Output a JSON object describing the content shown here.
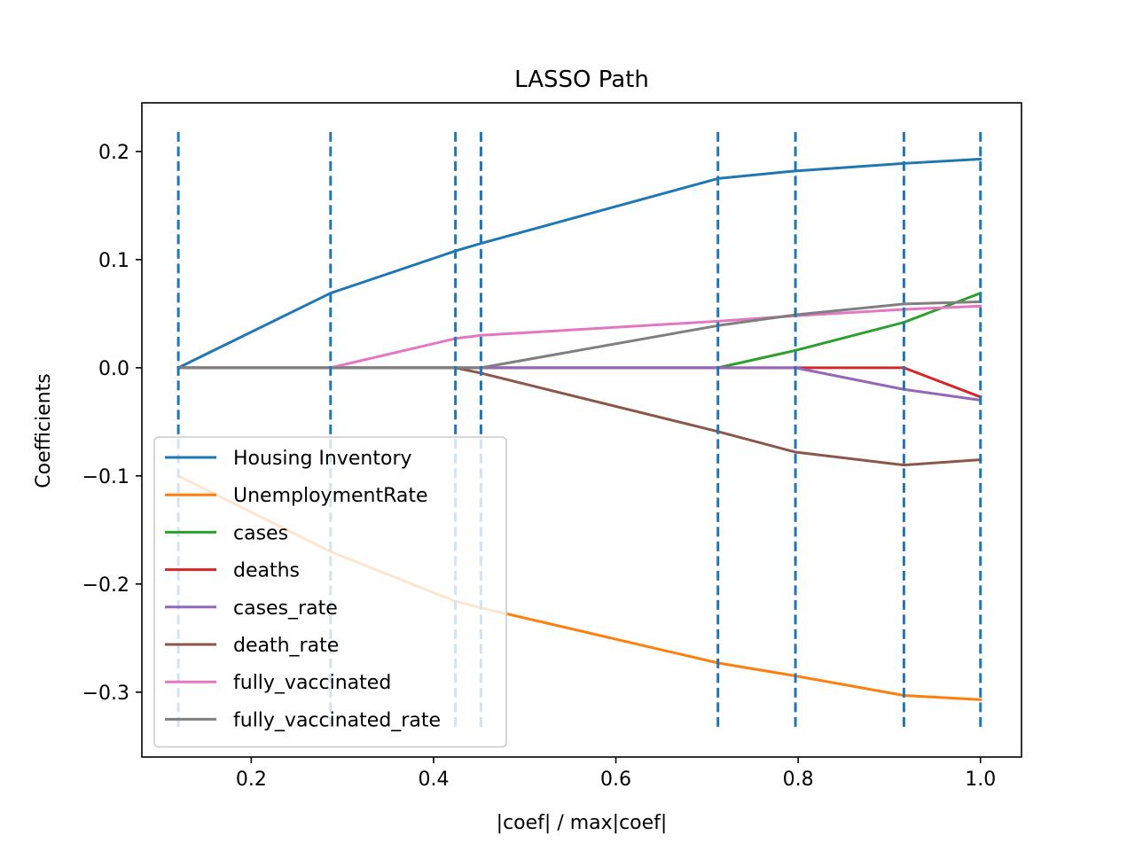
{
  "chart_data": {
    "type": "line",
    "title": "LASSO Path",
    "xlabel": "|coef| / max|coef|",
    "ylabel": "Coefficients",
    "xlim": [
      0.08,
      1.045
    ],
    "ylim": [
      -0.36,
      0.245
    ],
    "xticks": [
      0.2,
      0.4,
      0.6,
      0.8,
      1.0
    ],
    "xtick_labels": [
      "0.2",
      "0.4",
      "0.6",
      "0.8",
      "1.0"
    ],
    "yticks": [
      0.2,
      0.1,
      0.0,
      -0.1,
      -0.2,
      -0.3
    ],
    "ytick_labels": [
      "0.2",
      "0.1",
      "0.0",
      "−0.1",
      "−0.2",
      "−0.3"
    ],
    "grid": false,
    "legend_position": "lower-left",
    "x": [
      0.12,
      0.287,
      0.424,
      0.452,
      0.712,
      0.797,
      0.916,
      1.0
    ],
    "vlines": {
      "x": [
        0.12,
        0.287,
        0.424,
        0.452,
        0.712,
        0.797,
        0.916,
        1.0
      ],
      "ymin": -0.332,
      "ymax": 0.218,
      "color": "#1f77b4",
      "style": "dashed"
    },
    "series": [
      {
        "name": "Housing Inventory",
        "color": "#1f77b4",
        "values": [
          0.0,
          0.069,
          0.108,
          0.115,
          0.175,
          0.182,
          0.189,
          0.193
        ]
      },
      {
        "name": "UnemploymentRate",
        "color": "#ff7f0e",
        "values": [
          -0.1,
          -0.17,
          -0.216,
          -0.222,
          -0.273,
          -0.285,
          -0.303,
          -0.307
        ]
      },
      {
        "name": "cases",
        "color": "#2ca02c",
        "values": [
          0.0,
          0.0,
          0.0,
          0.0,
          0.0,
          0.016,
          0.042,
          0.069
        ]
      },
      {
        "name": "deaths",
        "color": "#d62728",
        "values": [
          0.0,
          0.0,
          0.0,
          0.0,
          0.0,
          0.0,
          0.0,
          -0.027
        ]
      },
      {
        "name": "cases_rate",
        "color": "#9467bd",
        "values": [
          0.0,
          0.0,
          0.0,
          0.0,
          0.0,
          0.0,
          -0.02,
          -0.03
        ]
      },
      {
        "name": "death_rate",
        "color": "#8c564b",
        "values": [
          0.0,
          0.0,
          0.0,
          -0.005,
          -0.059,
          -0.078,
          -0.09,
          -0.085
        ]
      },
      {
        "name": "fully_vaccinated",
        "color": "#e377c2",
        "values": [
          0.0,
          0.0,
          0.027,
          0.03,
          0.043,
          0.048,
          0.054,
          0.057
        ]
      },
      {
        "name": "fully_vaccinated_rate",
        "color": "#7f7f7f",
        "values": [
          0.0,
          0.0,
          0.0,
          0.0,
          0.039,
          0.049,
          0.059,
          0.061
        ]
      }
    ]
  }
}
